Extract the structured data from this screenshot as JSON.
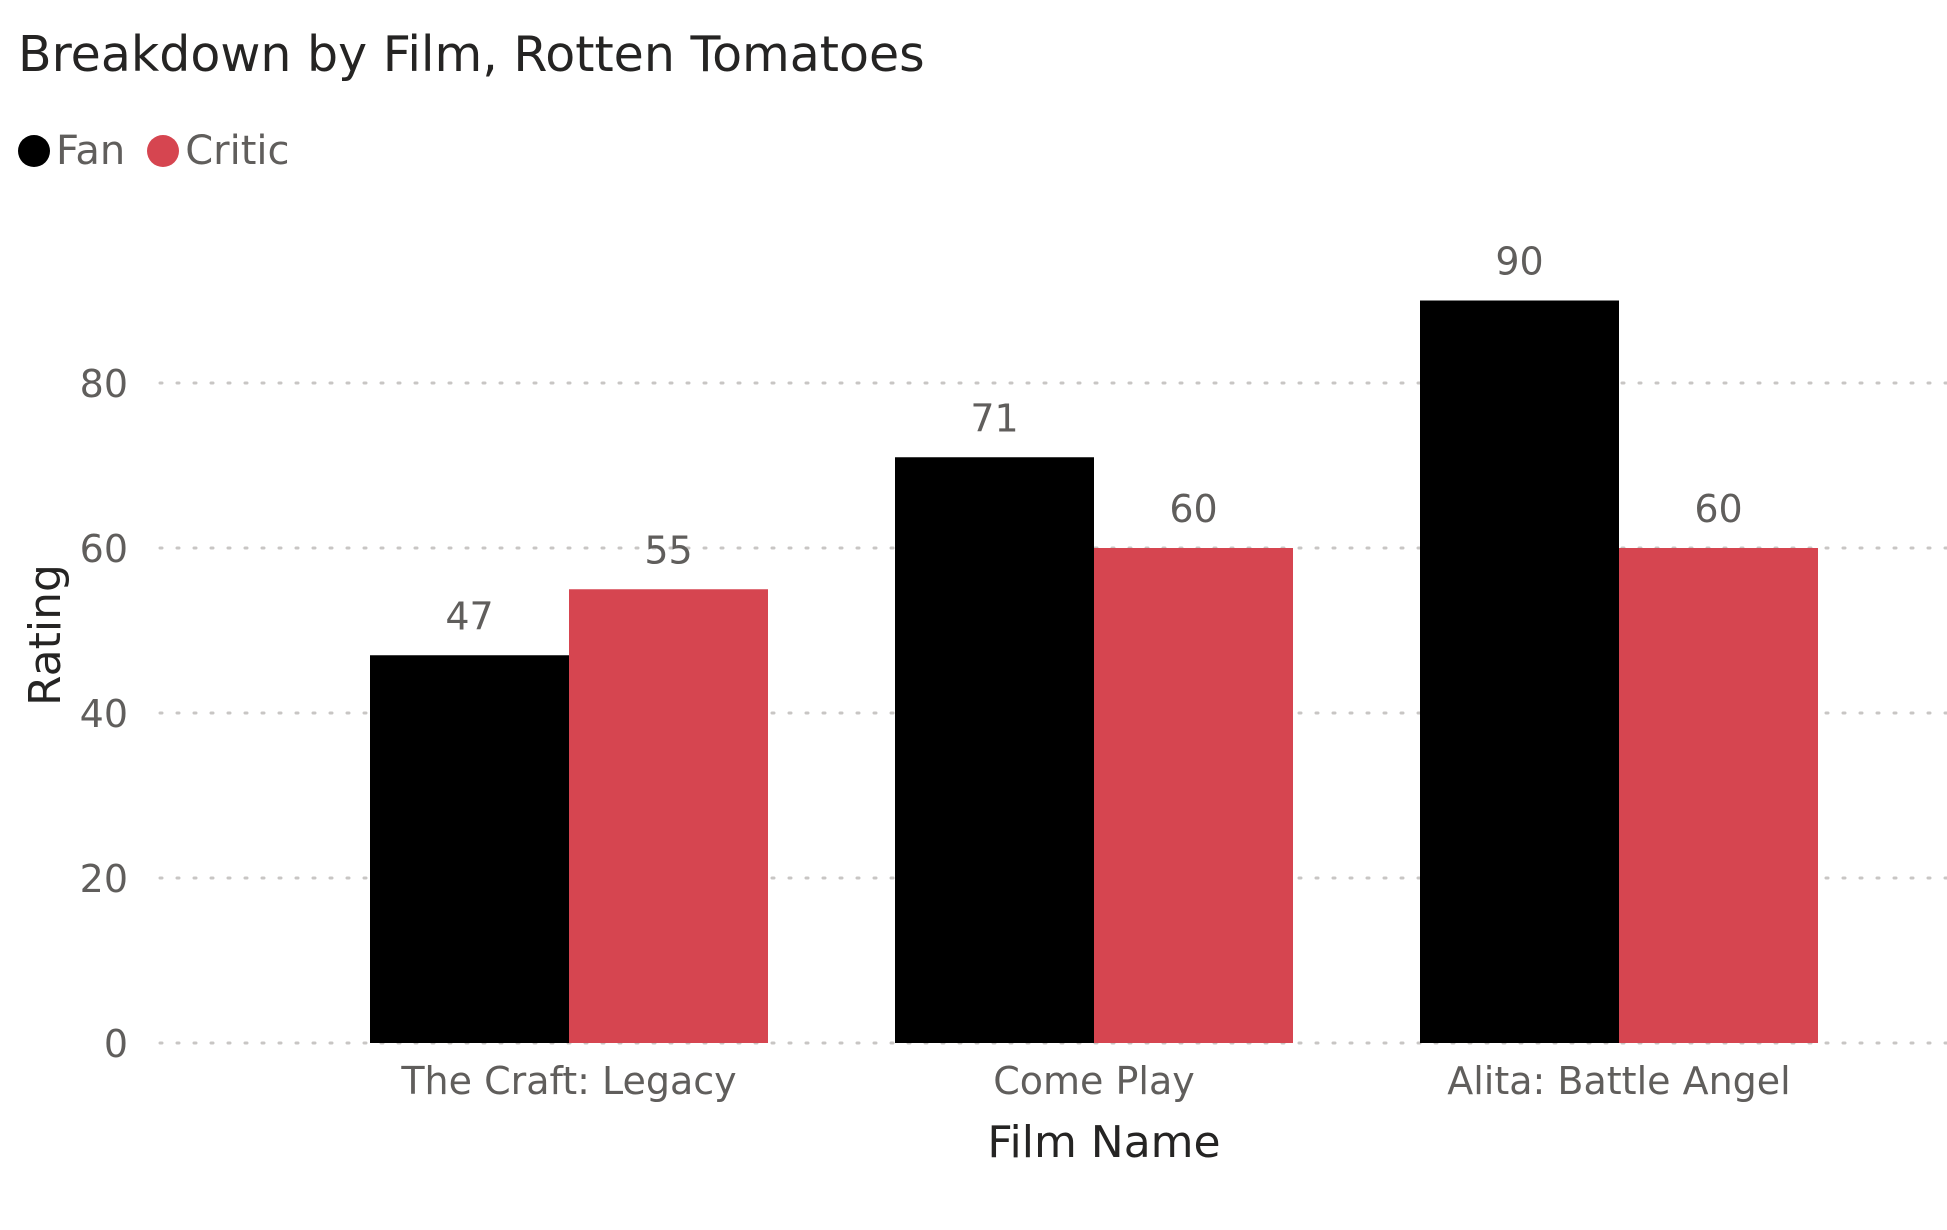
{
  "chart_data": {
    "type": "bar",
    "title": "Breakdown by Film, Rotten Tomatoes",
    "xlabel": "Film Name",
    "ylabel": "Rating",
    "categories": [
      "The Craft: Legacy",
      "Come Play",
      "Alita: Battle Angel"
    ],
    "series": [
      {
        "name": "Fan",
        "values": [
          47,
          71,
          90
        ],
        "color": "#000000"
      },
      {
        "name": "Critic",
        "values": [
          55,
          60,
          60
        ],
        "color": "#d64550"
      }
    ],
    "ylim": [
      0,
      90
    ],
    "yticks": [
      0,
      20,
      40,
      60,
      80
    ],
    "grid": true,
    "legend_position": "top-left",
    "data_labels": true
  }
}
